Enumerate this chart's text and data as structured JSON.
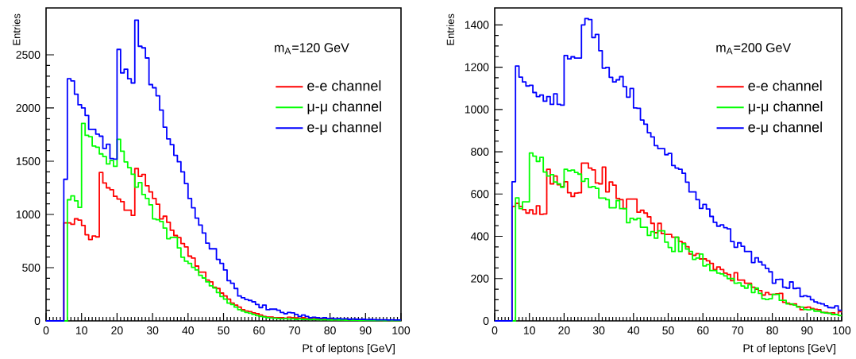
{
  "chart_data": [
    {
      "type": "histogram",
      "ylabel": "Entries",
      "xlabel": "Pt of leptons [GeV]",
      "annotations": [
        "m$_{A}$=120 GeV"
      ],
      "xlim": [
        0,
        100
      ],
      "xticks": [
        0,
        10,
        20,
        30,
        40,
        50,
        60,
        70,
        80,
        90,
        100
      ],
      "ylim": [
        0,
        2940
      ],
      "yticks": [
        0,
        500,
        1000,
        1500,
        2000,
        2500
      ],
      "legend": "top right",
      "bins": [
        0,
        1,
        2,
        3,
        4,
        5,
        6,
        7,
        8,
        9,
        10,
        11,
        12,
        13,
        14,
        15,
        16,
        17,
        18,
        19,
        20,
        21,
        22,
        23,
        24,
        25,
        26,
        27,
        28,
        29,
        30,
        31,
        32,
        33,
        34,
        35,
        36,
        37,
        38,
        39,
        40,
        41,
        42,
        43,
        44,
        45,
        46,
        47,
        48,
        49,
        50,
        51,
        52,
        53,
        54,
        55,
        56,
        57,
        58,
        59,
        60,
        61,
        62,
        63,
        64,
        65,
        66,
        67,
        68,
        69,
        70,
        71,
        72,
        73,
        74,
        75,
        76,
        77,
        78,
        79,
        80,
        81,
        82,
        83,
        84,
        85,
        86,
        87,
        88,
        89,
        90,
        91,
        92,
        93,
        94,
        95,
        96,
        97,
        98,
        99,
        100
      ],
      "series": [
        {
          "name": "e-e channel",
          "color": "#ff0000",
          "values": [
            0,
            0,
            0,
            0,
            0,
            920,
            920,
            907,
            959,
            947,
            896,
            809,
            764,
            797,
            789,
            1394,
            1295,
            1250,
            1232,
            1170,
            1145,
            1120,
            1040,
            1040,
            991,
            1431,
            1357,
            1376,
            1270,
            1212,
            1150,
            1096,
            958,
            983,
            926,
            851,
            802,
            782,
            727,
            695,
            608,
            590,
            515,
            458,
            458,
            383,
            366,
            316,
            304,
            261,
            234,
            204,
            167,
            149,
            129,
            105,
            92,
            87,
            75,
            67,
            55,
            42,
            37,
            37,
            30,
            30,
            30,
            25,
            35,
            30,
            28,
            25,
            30,
            22,
            20,
            25,
            18,
            20,
            15,
            18,
            15,
            12,
            15,
            12,
            10,
            12,
            10,
            8,
            10,
            8,
            8,
            6,
            8,
            6,
            5,
            6,
            5,
            4,
            5,
            4
          ]
        },
        {
          "name": "μ-μ channel",
          "color": "#00ff00",
          "values": [
            0,
            0,
            0,
            0,
            0,
            0,
            1138,
            1175,
            1128,
            1066,
            1855,
            1743,
            1731,
            1643,
            1631,
            1569,
            1544,
            1474,
            1506,
            1452,
            1706,
            1594,
            1494,
            1440,
            1377,
            1257,
            1299,
            1187,
            1150,
            1090,
            958,
            950,
            934,
            872,
            772,
            784,
            784,
            685,
            598,
            560,
            540,
            503,
            478,
            428,
            403,
            366,
            329,
            309,
            266,
            229,
            204,
            167,
            154,
            129,
            105,
            92,
            80,
            72,
            60,
            50,
            42,
            37,
            30,
            27,
            25,
            22,
            20,
            22,
            18,
            20,
            15,
            18,
            15,
            14,
            12,
            14,
            12,
            10,
            12,
            10,
            9,
            10,
            8,
            8,
            7,
            8,
            6,
            6,
            5,
            6,
            5,
            4,
            5,
            4,
            4,
            3,
            4,
            3,
            3,
            3
          ]
        },
        {
          "name": "e-μ channel",
          "color": "#0000ff",
          "values": [
            0,
            0,
            0,
            0,
            0,
            1330,
            2275,
            2255,
            2130,
            2030,
            2000,
            1930,
            1800,
            1800,
            1755,
            1735,
            1620,
            1660,
            1525,
            1520,
            2550,
            2330,
            2365,
            2275,
            2235,
            2825,
            2580,
            2565,
            2470,
            2220,
            2190,
            2115,
            1980,
            1820,
            1710,
            1655,
            1555,
            1495,
            1400,
            1290,
            1150,
            1063,
            965,
            900,
            825,
            730,
            677,
            677,
            578,
            540,
            478,
            378,
            353,
            304,
            234,
            217,
            200,
            192,
            179,
            154,
            125,
            149,
            105,
            110,
            110,
            100,
            80,
            67,
            80,
            75,
            60,
            42,
            55,
            42,
            30,
            35,
            30,
            25,
            30,
            22,
            25,
            20,
            22,
            18,
            20,
            15,
            18,
            15,
            14,
            15,
            12,
            13,
            12,
            10,
            11,
            10,
            9,
            10,
            8,
            8
          ]
        }
      ]
    },
    {
      "type": "histogram",
      "ylabel": "Entries",
      "xlabel": "Pt of leptons [GeV]",
      "annotations": [
        "m$_{A}$=200 GeV"
      ],
      "xlim": [
        0,
        100
      ],
      "xticks": [
        0,
        10,
        20,
        30,
        40,
        50,
        60,
        70,
        80,
        90,
        100
      ],
      "ylim": [
        0,
        1480
      ],
      "yticks": [
        0,
        200,
        400,
        600,
        800,
        1000,
        1200,
        1400
      ],
      "legend": "top right",
      "bins": [
        0,
        1,
        2,
        3,
        4,
        5,
        6,
        7,
        8,
        9,
        10,
        11,
        12,
        13,
        14,
        15,
        16,
        17,
        18,
        19,
        20,
        21,
        22,
        23,
        24,
        25,
        26,
        27,
        28,
        29,
        30,
        31,
        32,
        33,
        34,
        35,
        36,
        37,
        38,
        39,
        40,
        41,
        42,
        43,
        44,
        45,
        46,
        47,
        48,
        49,
        50,
        51,
        52,
        53,
        54,
        55,
        56,
        57,
        58,
        59,
        60,
        61,
        62,
        63,
        64,
        65,
        66,
        67,
        68,
        69,
        70,
        71,
        72,
        73,
        74,
        75,
        76,
        77,
        78,
        79,
        80,
        81,
        82,
        83,
        84,
        85,
        86,
        87,
        88,
        89,
        90,
        91,
        92,
        93,
        94,
        95,
        96,
        97,
        98,
        99,
        100
      ],
      "series": [
        {
          "name": "e-e channel",
          "color": "#ff0000",
          "values": [
            0,
            0,
            0,
            0,
            0,
            541,
            556,
            541,
            526,
            510,
            525,
            506,
            544,
            504,
            506,
            717,
            648,
            685,
            644,
            635,
            658,
            606,
            588,
            604,
            606,
            746,
            746,
            723,
            714,
            652,
            648,
            727,
            610,
            657,
            642,
            579,
            573,
            531,
            576,
            576,
            576,
            514,
            523,
            510,
            492,
            461,
            417,
            461,
            413,
            409,
            409,
            396,
            396,
            376,
            368,
            351,
            316,
            310,
            318,
            293,
            293,
            284,
            272,
            243,
            255,
            243,
            226,
            219,
            190,
            228,
            193,
            193,
            178,
            178,
            159,
            150,
            143,
            122,
            134,
            125,
            125,
            128,
            130,
            88,
            84,
            78,
            80,
            68,
            53,
            63,
            65,
            59,
            55,
            53,
            40,
            40,
            36,
            38,
            30,
            44
          ]
        },
        {
          "name": "μ-μ channel",
          "color": "#00ff00",
          "values": [
            0,
            0,
            0,
            0,
            0,
            0,
            582,
            531,
            563,
            563,
            794,
            779,
            754,
            773,
            704,
            685,
            692,
            657,
            648,
            632,
            717,
            710,
            713,
            702,
            694,
            660,
            673,
            632,
            635,
            627,
            581,
            581,
            573,
            535,
            535,
            569,
            531,
            531,
            464,
            485,
            479,
            485,
            443,
            443,
            404,
            422,
            391,
            426,
            426,
            372,
            347,
            328,
            396,
            328,
            365,
            340,
            328,
            291,
            297,
            316,
            260,
            266,
            238,
            238,
            226,
            222,
            213,
            200,
            200,
            178,
            180,
            165,
            155,
            171,
            134,
            155,
            130,
            105,
            101,
            105,
            125,
            125,
            97,
            97,
            80,
            80,
            75,
            65,
            65,
            54,
            52,
            55,
            46,
            46,
            40,
            37,
            36,
            30,
            30,
            25
          ]
        },
        {
          "name": "e-μ channel",
          "color": "#0000ff",
          "values": [
            0,
            0,
            0,
            0,
            0,
            658,
            1205,
            1153,
            1130,
            1111,
            1114,
            1080,
            1061,
            1068,
            1039,
            1061,
            1024,
            1074,
            1024,
            1020,
            1255,
            1239,
            1249,
            1243,
            1243,
            1400,
            1430,
            1425,
            1340,
            1355,
            1278,
            1195,
            1199,
            1152,
            1130,
            1140,
            1155,
            1108,
            1058,
            1099,
            1007,
            1005,
            950,
            930,
            890,
            870,
            829,
            815,
            815,
            786,
            792,
            735,
            723,
            717,
            698,
            656,
            610,
            610,
            573,
            532,
            551,
            529,
            494,
            466,
            448,
            454,
            441,
            435,
            375,
            348,
            369,
            353,
            328,
            328,
            276,
            298,
            279,
            264,
            248,
            232,
            178,
            196,
            197,
            159,
            155,
            184,
            153,
            155,
            115,
            119,
            115,
            100,
            90,
            84,
            80,
            72,
            63,
            62,
            71,
            50
          ]
        }
      ]
    }
  ]
}
